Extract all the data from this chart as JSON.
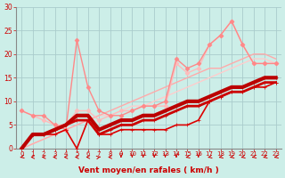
{
  "background_color": "#cceee8",
  "grid_color": "#aacccc",
  "x_min": 0,
  "x_max": 23,
  "y_min": 0,
  "y_max": 30,
  "xlabel": "Vent moyen/en rafales ( km/h )",
  "xlabel_color": "#cc0000",
  "tick_color": "#cc0000",
  "lines": [
    {
      "x": [
        0,
        1,
        2,
        3,
        4,
        5,
        6,
        7,
        8,
        9,
        10,
        11,
        12,
        13,
        14,
        15,
        16,
        17,
        18,
        19,
        20,
        21,
        22,
        23
      ],
      "y": [
        0,
        3,
        3,
        3,
        4,
        0,
        6,
        3,
        3,
        4,
        4,
        4,
        4,
        4,
        5,
        5,
        6,
        10,
        11,
        12,
        12,
        13,
        13,
        14
      ],
      "color": "#dd0000",
      "lw": 1.2,
      "marker": "+",
      "ms": 3,
      "zorder": 5
    },
    {
      "x": [
        0,
        1,
        2,
        3,
        4,
        5,
        6,
        7,
        8,
        9,
        10,
        11,
        12,
        13,
        14,
        15,
        16,
        17,
        18,
        19,
        20,
        21,
        22,
        23
      ],
      "y": [
        0,
        3,
        3,
        4,
        5,
        6,
        6,
        3,
        4,
        5,
        5,
        6,
        6,
        7,
        8,
        9,
        9,
        10,
        11,
        12,
        12,
        13,
        14,
        14
      ],
      "color": "#cc0000",
      "lw": 2.0,
      "marker": "+",
      "ms": 3,
      "zorder": 5
    },
    {
      "x": [
        0,
        1,
        2,
        3,
        4,
        5,
        6,
        7,
        8,
        9,
        10,
        11,
        12,
        13,
        14,
        15,
        16,
        17,
        18,
        19,
        20,
        21,
        22,
        23
      ],
      "y": [
        0,
        3,
        3,
        4,
        5,
        7,
        7,
        4,
        5,
        6,
        6,
        7,
        7,
        8,
        9,
        10,
        10,
        11,
        12,
        13,
        13,
        14,
        15,
        15
      ],
      "color": "#bb0000",
      "lw": 3.0,
      "marker": "+",
      "ms": 3,
      "zorder": 5
    },
    {
      "x": [
        0,
        1,
        2,
        3,
        4,
        5,
        6,
        7,
        8,
        9,
        10,
        11,
        12,
        13,
        14,
        15,
        16,
        17,
        18,
        19,
        20,
        21,
        22,
        23
      ],
      "y": [
        8,
        7,
        6,
        5,
        5,
        8,
        8,
        6,
        7,
        8,
        8,
        9,
        9,
        9,
        18,
        16,
        17,
        22,
        24,
        27,
        22,
        18,
        18,
        18
      ],
      "color": "#ffbbbb",
      "lw": 1.0,
      "marker": "D",
      "ms": 2.5,
      "zorder": 3
    },
    {
      "x": [
        0,
        1,
        2,
        3,
        4,
        5,
        6,
        7,
        8,
        9,
        10,
        11,
        12,
        13,
        14,
        15,
        16,
        17,
        18,
        19,
        20,
        21,
        22,
        23
      ],
      "y": [
        8,
        7,
        7,
        5,
        4,
        23,
        13,
        8,
        7,
        7,
        8,
        9,
        9,
        10,
        19,
        17,
        18,
        22,
        24,
        27,
        22,
        18,
        18,
        18
      ],
      "color": "#ff8888",
      "lw": 1.0,
      "marker": "D",
      "ms": 2.5,
      "zorder": 3
    },
    {
      "x": [
        0,
        1,
        2,
        3,
        4,
        5,
        6,
        7,
        8,
        9,
        10,
        11,
        12,
        13,
        14,
        15,
        16,
        17,
        18,
        19,
        20,
        21,
        22,
        23
      ],
      "y": [
        0,
        1,
        2,
        3,
        4,
        5,
        6,
        7,
        7,
        8,
        9,
        9,
        10,
        11,
        12,
        13,
        14,
        15,
        16,
        17,
        18,
        19,
        19,
        18
      ],
      "color": "#ffcccc",
      "lw": 1.0,
      "marker": null,
      "ms": 0,
      "zorder": 2
    },
    {
      "x": [
        0,
        1,
        2,
        3,
        4,
        5,
        6,
        7,
        8,
        9,
        10,
        11,
        12,
        13,
        14,
        15,
        16,
        17,
        18,
        19,
        20,
        21,
        22,
        23
      ],
      "y": [
        0,
        1,
        2,
        3,
        4,
        5,
        6,
        7,
        8,
        9,
        10,
        11,
        12,
        13,
        14,
        15,
        16,
        17,
        17,
        18,
        19,
        20,
        20,
        19
      ],
      "color": "#ffaaaa",
      "lw": 1.0,
      "marker": null,
      "ms": 0,
      "zorder": 2
    }
  ],
  "arrows_x": [
    0,
    1,
    2,
    3,
    4,
    5,
    6,
    7,
    8,
    9,
    10,
    11,
    12,
    13,
    14,
    15,
    16,
    17,
    18,
    19,
    20,
    21,
    22,
    23
  ],
  "arrow_angles_deg": [
    225,
    270,
    270,
    270,
    270,
    270,
    270,
    45,
    270,
    180,
    180,
    180,
    180,
    180,
    180,
    225,
    180,
    225,
    225,
    225,
    225,
    225,
    225,
    225
  ],
  "arrow_color": "#cc0000"
}
